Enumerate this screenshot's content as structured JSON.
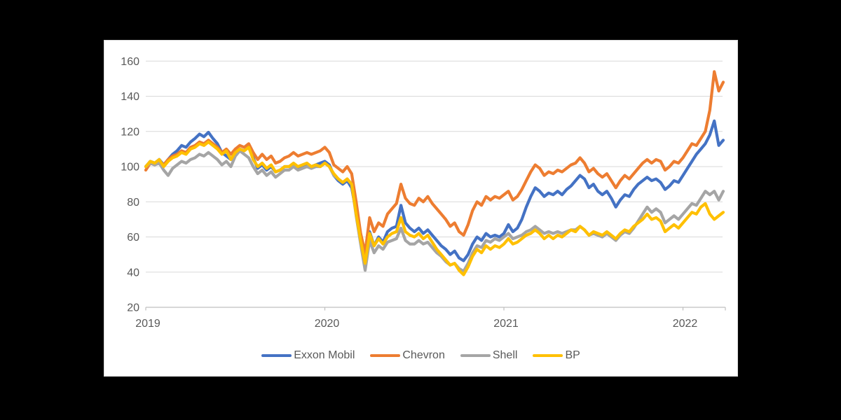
{
  "page": {
    "background_color": "#000000",
    "panel_background": "#FFFFFF",
    "panel_border_color": "#D9D9D9"
  },
  "chart_data": {
    "type": "line",
    "title": "",
    "xlabel": "",
    "ylabel": "",
    "grid": true,
    "legend_position": "bottom",
    "x_axis": {
      "min": 2019.0,
      "max": 2022.225,
      "ticks": [
        2019,
        2020,
        2021,
        2022
      ]
    },
    "y_axis": {
      "min": 20,
      "max": 160,
      "ticks": [
        20,
        40,
        60,
        80,
        100,
        120,
        140,
        160
      ]
    },
    "x_start": 2019.0,
    "x_step": 0.025,
    "styles": {
      "grid_color": "#D9D9D9",
      "axis_color": "#BFBFBF",
      "label_color": "#595959",
      "line_width": 4.2
    },
    "series": [
      {
        "name": "Exxon Mobil",
        "color": "#4472C4",
        "values": [
          100,
          103,
          102,
          104,
          101,
          104,
          107,
          109,
          112,
          111,
          114,
          116,
          118.5,
          117,
          119.5,
          116,
          113,
          108,
          106,
          104,
          108,
          110,
          109,
          111,
          105,
          99,
          101,
          98,
          100,
          97,
          98,
          100,
          100,
          101,
          99,
          100,
          101,
          100,
          101,
          102,
          103,
          101,
          95,
          92,
          90,
          92,
          88,
          74,
          58,
          46,
          63,
          55,
          60,
          57,
          63,
          65,
          66,
          78,
          68,
          65,
          63,
          65,
          62,
          64,
          61,
          58,
          55,
          53,
          50,
          52,
          48,
          46.5,
          50,
          56,
          60,
          58,
          62,
          60,
          61,
          60,
          62,
          67,
          63,
          65,
          70,
          77,
          83,
          88,
          86,
          83,
          85,
          84,
          86,
          84,
          87,
          89,
          92,
          95,
          93,
          88,
          90,
          86,
          84,
          86,
          82,
          77,
          81,
          84,
          83,
          87,
          90,
          92,
          94,
          92,
          93,
          91,
          87,
          89,
          92,
          91,
          95,
          99,
          103,
          107,
          110,
          113,
          118,
          126,
          112,
          115
        ]
      },
      {
        "name": "Chevron",
        "color": "#ED7D31",
        "values": [
          98,
          102,
          101,
          103,
          101,
          104,
          106,
          107,
          109,
          108,
          111,
          112,
          114,
          113,
          115,
          113,
          111,
          108,
          110,
          107,
          110,
          112,
          111,
          113,
          108,
          104,
          107,
          104,
          106,
          102,
          103,
          105,
          106,
          108,
          106,
          107,
          108,
          107,
          108,
          109,
          111,
          108,
          101,
          99,
          97,
          100,
          96,
          80,
          62,
          51,
          71,
          63,
          68,
          66,
          73,
          76,
          79,
          90,
          82,
          79,
          78,
          82,
          80,
          83,
          79,
          76,
          73,
          70,
          66,
          68,
          63,
          61,
          67,
          75,
          80,
          78,
          83,
          81,
          83,
          82,
          84,
          86,
          81,
          83,
          87,
          92,
          97,
          101,
          99,
          95,
          97,
          96,
          98,
          97,
          99,
          101,
          102,
          105,
          102,
          97,
          99,
          96,
          94,
          96,
          92,
          88,
          92,
          95,
          93,
          96,
          99,
          102,
          104,
          102,
          104,
          103,
          98,
          100,
          103,
          102,
          105,
          109,
          113,
          112,
          116,
          120,
          132,
          154,
          143,
          148
        ]
      },
      {
        "name": "Shell",
        "color": "#A5A5A5",
        "values": [
          100,
          102,
          101,
          102,
          98,
          95,
          99,
          101,
          103,
          102,
          104,
          105,
          107,
          106,
          108,
          106,
          104,
          101,
          103,
          100,
          106,
          109,
          107,
          105,
          100,
          96,
          98,
          95,
          97,
          94,
          96,
          98,
          98,
          100,
          98,
          99,
          100,
          99,
          100,
          100,
          102,
          100,
          95,
          93,
          91,
          93,
          90,
          72,
          56,
          41,
          58,
          51,
          55,
          53,
          57,
          58,
          59,
          65,
          58,
          56,
          56,
          58,
          56,
          57,
          54,
          51,
          49,
          46,
          44,
          45,
          42,
          40.5,
          45,
          51,
          55,
          54,
          58,
          57,
          59,
          58,
          60,
          62,
          59,
          60,
          61,
          63,
          64,
          66,
          64,
          62,
          63,
          62,
          63,
          62,
          63,
          64,
          64,
          66,
          64,
          61,
          62,
          61,
          60,
          62,
          60,
          58,
          61,
          63,
          62,
          65,
          69,
          73,
          77,
          74,
          76,
          74,
          68,
          70,
          72,
          70,
          73,
          76,
          79,
          78,
          82,
          86,
          84,
          86,
          81,
          86
        ]
      },
      {
        "name": "BP",
        "color": "#FFC000",
        "values": [
          100,
          103,
          102,
          104,
          100,
          103,
          105,
          106,
          108,
          107,
          110,
          111,
          113,
          112,
          114,
          112,
          110,
          107,
          109,
          104,
          108,
          110,
          109,
          111,
          104,
          100,
          102,
          99,
          101,
          97,
          98,
          100,
          100,
          102,
          100,
          101,
          102,
          100,
          101,
          100,
          102,
          100,
          96,
          93,
          91,
          93,
          90,
          73,
          58,
          45,
          62,
          55,
          59,
          56,
          60,
          62,
          63,
          71,
          63,
          61,
          60,
          62,
          59,
          61,
          57,
          53,
          50,
          47,
          44,
          45,
          41,
          38.5,
          43,
          49,
          53,
          51,
          55,
          53,
          55,
          54,
          56,
          59,
          56,
          57,
          59,
          61,
          62,
          64,
          62,
          59,
          61,
          59,
          61,
          60,
          62,
          64,
          63,
          66,
          64,
          61,
          63,
          62,
          61,
          63,
          61,
          59,
          62,
          64,
          63,
          66,
          68,
          70,
          73,
          70,
          71,
          69,
          63,
          65,
          67,
          65,
          68,
          71,
          74,
          73,
          77,
          79,
          73,
          70,
          72,
          74
        ]
      }
    ]
  },
  "legend": {
    "items": [
      {
        "label": "Exxon Mobil"
      },
      {
        "label": "Chevron"
      },
      {
        "label": "Shell"
      },
      {
        "label": "BP"
      }
    ]
  }
}
